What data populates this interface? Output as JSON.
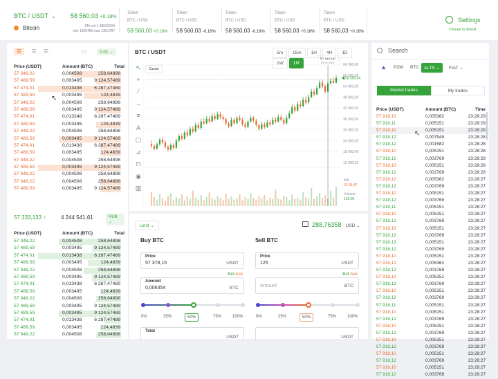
{
  "header": {
    "pair": "BTC / USDT",
    "coin": "Bitcoin",
    "price": "58 560,03",
    "change": "+0.18%",
    "stats": [
      "24h vol 1.48533194",
      "min 1255456 max 1351787"
    ],
    "tokens": [
      {
        "title": "Token",
        "pair": "BTC / USD",
        "price": "58 560,03",
        "change": "+0.18%",
        "color": "green"
      },
      {
        "title": "Token",
        "pair": "BTC / USD",
        "price": "58 560,03",
        "change": "-0,18%",
        "color": "dark"
      },
      {
        "title": "Token",
        "pair": "BTC / USD",
        "price": "58 560,03",
        "change": "-0,18%",
        "color": "dark"
      },
      {
        "title": "Token",
        "pair": "BTC / USD",
        "price": "58 560,03",
        "change": "+0.18%",
        "color": "dark"
      },
      {
        "title": "Token",
        "pair": "BTC / USD",
        "price": "58 560,03",
        "change": "+0.18%",
        "color": "dark"
      }
    ],
    "settings": "Settings",
    "change_default": "Change to default"
  },
  "orderbook": {
    "decimals": "0.01",
    "headers": [
      "Price (USDT)",
      "Amount (BTC)",
      "Total"
    ],
    "asks": [
      [
        "57 348,22",
        "0,004508",
        "258,64898",
        0.6
      ],
      [
        "57 489,59",
        "0,003495",
        "9 124,57489",
        0.3
      ],
      [
        "57 474,01",
        "0,013438",
        "6 287,47489",
        1.0
      ],
      [
        "57 489,59",
        "0,003495",
        "124,4839",
        0.45
      ],
      [
        "57 348,22",
        "0,004508",
        "258,64898",
        0.0
      ],
      [
        "57 489,59",
        "0,003495",
        "9 124,57489",
        0.3
      ],
      [
        "57 474,01",
        "0,013248",
        "6 287,47489",
        0.0
      ],
      [
        "57 489,59",
        "0,003495",
        "124,4839",
        0.3
      ],
      [
        "57 348,22",
        "0,004508",
        "258,64898",
        0.0
      ],
      [
        "57 489,59",
        "0,003495",
        "9 124,57489",
        0.75
      ],
      [
        "57 474,01",
        "0,013438",
        "6 287,47489",
        0.25
      ],
      [
        "57 489,59",
        "0,003495",
        "124,4839",
        0.25
      ],
      [
        "57 348,22",
        "0,004508",
        "258,64898",
        0.0
      ],
      [
        "57 489,59",
        "0,003495",
        "9 124,57489",
        1.0
      ],
      [
        "57 348,22",
        "0,004508",
        "258,64898",
        0.0
      ],
      [
        "57 348,22",
        "0,004508",
        "258,64898",
        0.25
      ],
      [
        "57 489,59",
        "0,003495",
        "9 124,57489",
        0.25
      ]
    ],
    "last_price": "57 333,133",
    "last_total": "4 244 541,61",
    "currency": "RUB",
    "bids": [
      [
        "57 348,22",
        "0,004508",
        "258,64898",
        0.75
      ],
      [
        "57 489,59",
        "0,003495",
        "9 124,57489",
        0.35
      ],
      [
        "57 474,01",
        "0,013438",
        "6 287,47489",
        1.0
      ],
      [
        "57 489,59",
        "0,003495",
        "124,4839",
        0.4
      ],
      [
        "57 348,22",
        "0,004508",
        "258,64898",
        0.45
      ],
      [
        "57 489,59",
        "0,003495",
        "9 124,57489",
        0.35
      ],
      [
        "57 474,01",
        "0,013438",
        "6 287,47489",
        0.0
      ],
      [
        "57 489,59",
        "0,003495",
        "124,4839",
        0.25
      ],
      [
        "57 348,22",
        "0,004508",
        "258,64898",
        0.3
      ],
      [
        "57 489,59",
        "0,003495",
        "9 124,57489",
        0.25
      ],
      [
        "57 489,59",
        "0,003495",
        "9 124,57489",
        0.75
      ],
      [
        "57 474,01",
        "0,013438",
        "6 287,47489",
        0.2
      ],
      [
        "57 489,59",
        "0,003495",
        "124,4839",
        0.25
      ],
      [
        "57 348,22",
        "0,004508",
        "258,64898",
        0.3
      ]
    ]
  },
  "chart": {
    "title": "BTC / USDT",
    "timeframes": [
      "5m",
      "15m",
      "1H",
      "4H",
      "1D",
      "1W",
      "1M"
    ],
    "active_tf": "1M",
    "cursor_label": "Cursor",
    "tooltip_price": "57 814,00",
    "tooltip_date": "09.03.2020",
    "last_price": "58 560,04",
    "ma_label": "MA",
    "ma_value": "23 35,47",
    "volume_label": "Volume:",
    "volume_value": "129,00",
    "y_ticks": [
      "66 000,00",
      "60 000,00",
      "54 000,00",
      "48 000,00",
      "42 000,00",
      "36 000,00",
      "30 000,00",
      "24 000,00",
      "18 000,00",
      "12 000,00"
    ],
    "colors": {
      "up": "#35a33a",
      "down": "#e8692f"
    }
  },
  "chart_data": {
    "type": "candlestick",
    "ylim": [
      10000,
      68000
    ],
    "y_ticks": [
      66000,
      60000,
      54000,
      48000,
      42000,
      36000,
      30000,
      24000,
      18000,
      12000
    ],
    "candles": [
      [
        22000,
        21000,
        24000,
        20000
      ],
      [
        21000,
        19500,
        22000,
        18500
      ],
      [
        19500,
        22000,
        23000,
        19000
      ],
      [
        22000,
        24500,
        25500,
        21000
      ],
      [
        24500,
        23000,
        26000,
        22000
      ],
      [
        23000,
        20500,
        24000,
        19500
      ],
      [
        20500,
        19000,
        21500,
        18000
      ],
      [
        19000,
        21500,
        22500,
        18500
      ],
      [
        21500,
        20000,
        22500,
        19000
      ],
      [
        20000,
        24000,
        25000,
        19500
      ],
      [
        24000,
        26500,
        27500,
        23000
      ],
      [
        26500,
        25000,
        28000,
        24000
      ],
      [
        25000,
        28500,
        29500,
        24500
      ],
      [
        28500,
        27000,
        30000,
        26000
      ],
      [
        27000,
        30500,
        32000,
        26500
      ],
      [
        30500,
        29000,
        32000,
        28000
      ],
      [
        29000,
        32500,
        34000,
        28500
      ],
      [
        32500,
        31000,
        34000,
        30000
      ],
      [
        31000,
        34500,
        36000,
        30000
      ],
      [
        34500,
        33500,
        36500,
        32500
      ],
      [
        33500,
        36000,
        37500,
        33000
      ],
      [
        36000,
        34500,
        37500,
        33500
      ],
      [
        34500,
        37500,
        39000,
        34000
      ],
      [
        37500,
        36000,
        39000,
        35000
      ],
      [
        36000,
        38500,
        40000,
        35500
      ],
      [
        38500,
        37000,
        40000,
        36000
      ],
      [
        37000,
        36000,
        38500,
        35000
      ],
      [
        36000,
        33500,
        37000,
        32500
      ],
      [
        33500,
        32000,
        34500,
        31000
      ],
      [
        32000,
        35500,
        37000,
        31500
      ],
      [
        35500,
        33500,
        36500,
        32500
      ],
      [
        33500,
        36500,
        37500,
        33000
      ],
      [
        36500,
        35500,
        38000,
        34500
      ],
      [
        35500,
        33000,
        36500,
        32000
      ],
      [
        33000,
        31500,
        34000,
        30500
      ],
      [
        31500,
        34500,
        35500,
        31000
      ],
      [
        34500,
        36500,
        38000,
        34000
      ],
      [
        36500,
        35000,
        37500,
        34000
      ],
      [
        35000,
        32500,
        36000,
        31500
      ],
      [
        32500,
        30500,
        33500,
        29500
      ],
      [
        30500,
        33000,
        34500,
        30000
      ],
      [
        33000,
        31500,
        34000,
        30500
      ],
      [
        31500,
        34000,
        35500,
        31000
      ],
      [
        34000,
        33000,
        35500,
        32000
      ],
      [
        33000,
        35500,
        37000,
        32500
      ],
      [
        35500,
        34500,
        37000,
        33500
      ],
      [
        34500,
        37000,
        38500,
        34000
      ],
      [
        37000,
        35500,
        38500,
        34500
      ],
      [
        35500,
        33500,
        36500,
        32500
      ],
      [
        33500,
        36500,
        38000,
        33000
      ],
      [
        36500,
        39000,
        40500,
        36000
      ],
      [
        39000,
        42500,
        44000,
        38500
      ],
      [
        42500,
        40500,
        43500,
        39500
      ],
      [
        40500,
        44000,
        45500,
        40000
      ],
      [
        44000,
        43000,
        46000,
        42000
      ],
      [
        43000,
        46500,
        48000,
        42500
      ],
      [
        46500,
        45000,
        48500,
        44000
      ],
      [
        45000,
        48000,
        49500,
        44500
      ],
      [
        48000,
        51000,
        52500,
        47500
      ],
      [
        51000,
        49500,
        52500,
        48500
      ],
      [
        49500,
        53000,
        54500,
        49000
      ],
      [
        53000,
        56000,
        57500,
        52500
      ],
      [
        56000,
        54000,
        57500,
        53000
      ],
      [
        54000,
        51000,
        55000,
        50000
      ],
      [
        51000,
        55500,
        57000,
        50500
      ],
      [
        55500,
        57000,
        58500,
        55000
      ],
      [
        57000,
        56000,
        59000,
        55500
      ],
      [
        56000,
        58500,
        60000,
        55500
      ]
    ],
    "volume": [
      22,
      14,
      10,
      18,
      12,
      8,
      16,
      20,
      10,
      14,
      12,
      18,
      9,
      15,
      11,
      24,
      13,
      10,
      17,
      9,
      14,
      21,
      12,
      10,
      16,
      13,
      9,
      19,
      11,
      15,
      10,
      12,
      18,
      9,
      14,
      11,
      20,
      13,
      10,
      15,
      12,
      17,
      9,
      13,
      11,
      25,
      12,
      10,
      16,
      14,
      9,
      18,
      11,
      13,
      10,
      22,
      14,
      12,
      28,
      11,
      15,
      20,
      13,
      17,
      12,
      24,
      14,
      30
    ]
  },
  "trade": {
    "order_type": "Limit",
    "balance": "288,76358",
    "balance_curr": "USD",
    "buy": {
      "title": "Buy BTC",
      "price_label": "Price",
      "price_value": "57 378,15",
      "price_unit": "USDT",
      "amount_label": "Amount",
      "amount_value": "0,006354",
      "amount_unit": "BTC",
      "bid": "Bid",
      "ask": "Ask",
      "total_label": "Total",
      "total_value": "",
      "total_unit": "USDT",
      "percent": 0.5
    },
    "sell": {
      "title": "Sell BTC",
      "price_label": "Price",
      "price_value": "125",
      "price_unit": "USDT",
      "amount_placeholder": "Amount",
      "amount_unit": "BTC",
      "bid": "Bid",
      "ask": "Ask",
      "total_unit": "USDT",
      "percent": 0.5
    },
    "percents": [
      "0%",
      "25%",
      "50%",
      "75%",
      "100%"
    ]
  },
  "market": {
    "search_placeholder": "Search",
    "filters": [
      "PZM",
      "BTC",
      "ALTS",
      "FIAT"
    ],
    "active_filter": "ALTS",
    "tabs": [
      "Market trades",
      "My trades"
    ],
    "headers": [
      "Price (USDT)",
      "Amount (BTC)",
      "Time"
    ],
    "rows": [
      [
        "57 918,10",
        "0,005362",
        "23:28:29",
        "r"
      ],
      [
        "57 918,11",
        "0,005151",
        "23:28:29",
        "g"
      ],
      [
        "57 918,10",
        "0,005151",
        "23:28:29",
        "r"
      ],
      [
        "57 918,12",
        "0,007549",
        "23:28:28",
        "g"
      ],
      [
        "57 918,12",
        "0,001582",
        "23:28:28",
        "g"
      ],
      [
        "57 918,10",
        "0,005151",
        "23:28:28",
        "r"
      ],
      [
        "57 918,12",
        "0,003769",
        "23:28:28",
        "g"
      ],
      [
        "57 918,10",
        "0,005151",
        "23:28:28",
        "r"
      ],
      [
        "57 918,12",
        "0,003769",
        "23:28:28",
        "g"
      ],
      [
        "57 918,12",
        "0,005362",
        "23:28:27",
        "r"
      ],
      [
        "57 918,12",
        "0,003769",
        "23:28:27",
        "g"
      ],
      [
        "57 918,10",
        "0,005151",
        "23:28:27",
        "r"
      ],
      [
        "57 918,12",
        "0,003769",
        "23:28:27",
        "g"
      ],
      [
        "57 918,11",
        "0,005151",
        "23:28:27",
        "g"
      ],
      [
        "57 918,10",
        "0,005151",
        "23:28:27",
        "r"
      ],
      [
        "57 918,12",
        "0,003769",
        "23:28:27",
        "g"
      ],
      [
        "57 918,10",
        "0,005151",
        "23:28:27",
        "r"
      ],
      [
        "57 918,12",
        "0,003769",
        "23:28:27",
        "g"
      ],
      [
        "57 918,13",
        "0,005151",
        "23:28:27",
        "g"
      ],
      [
        "57 918,12",
        "0,003769",
        "23:28:27",
        "g"
      ],
      [
        "57 918,10",
        "0,005151",
        "23:28:27",
        "r"
      ],
      [
        "57 918,12",
        "0,005362",
        "23:28:27",
        "r"
      ],
      [
        "57 918,12",
        "0,003769",
        "23:28:27",
        "g"
      ],
      [
        "57 918,10",
        "0,005151",
        "23:28:27",
        "r"
      ],
      [
        "57 918,12",
        "0,003769",
        "23:28:27",
        "g"
      ],
      [
        "57 918,10",
        "0,005151",
        "23:28:27",
        "r"
      ],
      [
        "57 918,12",
        "0,003769",
        "23:28:27",
        "g"
      ],
      [
        "57 918,11",
        "0,005151",
        "23:28:27",
        "g"
      ],
      [
        "57 918,10",
        "0,005151",
        "23:28:27",
        "r"
      ],
      [
        "57 918,12",
        "0,003769",
        "23:28:27",
        "g"
      ],
      [
        "57 918,10",
        "0,005151",
        "23:28:27",
        "r"
      ],
      [
        "57 918,12",
        "0,003769",
        "23:28:27",
        "g"
      ],
      [
        "57 918,10",
        "0,005151",
        "23:28:27",
        "r"
      ],
      [
        "57 918,12",
        "0,003769",
        "23:28:27",
        "g"
      ],
      [
        "57 918,10",
        "0,005151",
        "23:28:27",
        "r"
      ],
      [
        "57 918,12",
        "0,003769",
        "23:28:27",
        "g"
      ],
      [
        "57 918,10",
        "0,005151",
        "23:28:27",
        "r"
      ],
      [
        "57 918,12",
        "0,003769",
        "23:28:27",
        "g"
      ]
    ]
  }
}
